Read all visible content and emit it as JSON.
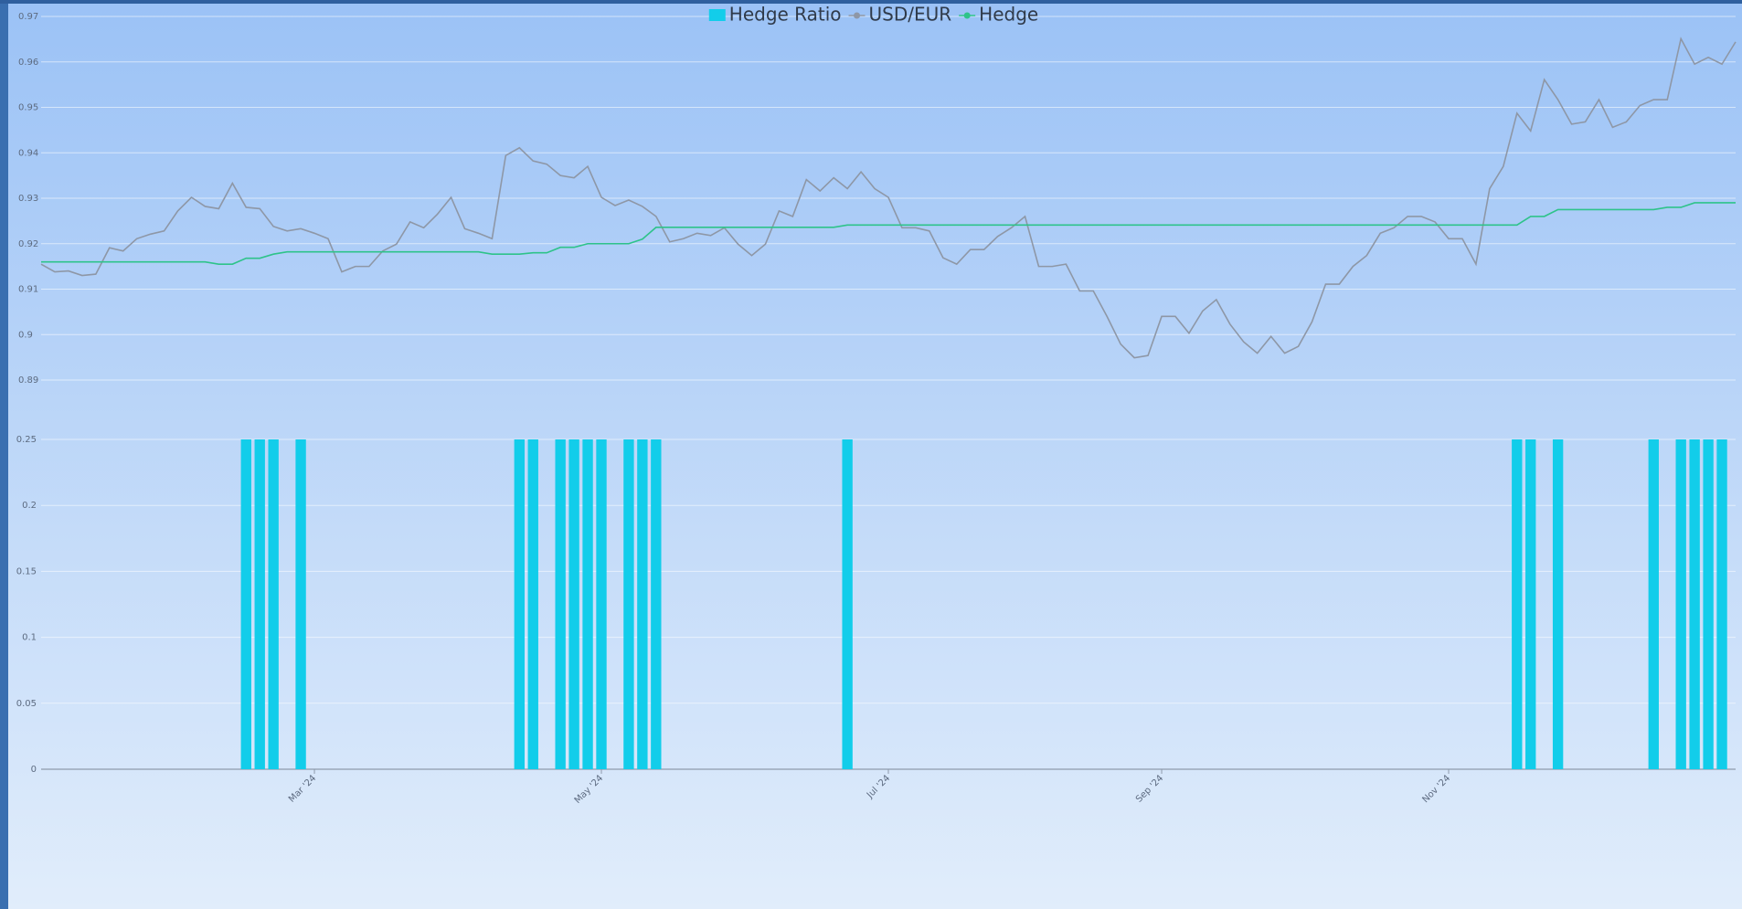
{
  "chart_data": {
    "type": "combo",
    "categories": [
      null,
      null,
      null,
      null,
      null,
      null,
      null,
      null,
      null,
      null,
      null,
      null,
      null,
      null,
      null,
      null,
      null,
      null,
      null,
      null,
      "Mar '24",
      null,
      null,
      null,
      null,
      null,
      null,
      null,
      null,
      null,
      null,
      null,
      null,
      null,
      null,
      null,
      null,
      null,
      null,
      null,
      null,
      "May '24",
      null,
      null,
      null,
      null,
      null,
      null,
      null,
      null,
      null,
      null,
      null,
      null,
      null,
      null,
      null,
      null,
      null,
      null,
      null,
      null,
      "Jul '24",
      null,
      null,
      null,
      null,
      null,
      null,
      null,
      null,
      null,
      null,
      null,
      null,
      null,
      null,
      null,
      null,
      null,
      null,
      null,
      "Sep '24",
      null,
      null,
      null,
      null,
      null,
      null,
      null,
      null,
      null,
      null,
      null,
      null,
      null,
      null,
      null,
      null,
      null,
      null,
      null,
      null,
      "Nov '24",
      null,
      null,
      null,
      null,
      null,
      null,
      null,
      null,
      null,
      null,
      null,
      null,
      null,
      null,
      null,
      null,
      null,
      null,
      null,
      null,
      null
    ],
    "series": [
      {
        "name": "Hedge Ratio",
        "type": "bar",
        "axis": "y2",
        "color": "#12cdea",
        "values": [
          0,
          0,
          0,
          0,
          0,
          0,
          0,
          0,
          0,
          0,
          0,
          0,
          0,
          0,
          0,
          0.25,
          0.25,
          0.25,
          0,
          0.25,
          0,
          0,
          0,
          0,
          0,
          0,
          0,
          0,
          0,
          0,
          0,
          0,
          0,
          0,
          0,
          0.25,
          0.25,
          0,
          0.25,
          0.25,
          0.25,
          0.25,
          0,
          0.25,
          0.25,
          0.25,
          0,
          0,
          0,
          0,
          0,
          0,
          0,
          0,
          0,
          0,
          0,
          0,
          0,
          0.25,
          0,
          0,
          0,
          0,
          0,
          0,
          0,
          0,
          0,
          0,
          0,
          0,
          0,
          0,
          0,
          0,
          0,
          0,
          0,
          0,
          0,
          0,
          0,
          0,
          0,
          0,
          0,
          0,
          0,
          0,
          0,
          0,
          0,
          0,
          0,
          0,
          0,
          0,
          0,
          0,
          0,
          0,
          0,
          0,
          0,
          0,
          0,
          0,
          0.25,
          0.25,
          0,
          0.25,
          0,
          0,
          0,
          0,
          0,
          0,
          0.25,
          0,
          0.25,
          0.25,
          0.25,
          0.25,
          0
        ]
      },
      {
        "name": "USD/EUR",
        "type": "line",
        "color": "#8e97a6",
        "values": [
          0.9155,
          0.9138,
          0.914,
          0.913,
          0.9133,
          0.9191,
          0.9184,
          0.9211,
          0.9221,
          0.9228,
          0.9272,
          0.9302,
          0.9282,
          0.9277,
          0.9333,
          0.928,
          0.9277,
          0.9238,
          0.9228,
          0.9233,
          0.9223,
          0.9211,
          0.9138,
          0.915,
          0.915,
          0.9184,
          0.9199,
          0.9248,
          0.9235,
          0.9265,
          0.9302,
          0.9233,
          0.9223,
          0.9211,
          0.9394,
          0.9411,
          0.9382,
          0.9375,
          0.935,
          0.9345,
          0.937,
          0.9302,
          0.9284,
          0.9296,
          0.9282,
          0.926,
          0.9204,
          0.9211,
          0.9223,
          0.9218,
          0.9235,
          0.9199,
          0.9174,
          0.9199,
          0.9272,
          0.926,
          0.9341,
          0.9316,
          0.9345,
          0.9321,
          0.9358,
          0.9321,
          0.9302,
          0.9235,
          0.9235,
          0.9228,
          0.9169,
          0.9155,
          0.9187,
          0.9187,
          0.9216,
          0.9235,
          0.926,
          0.915,
          0.915,
          0.9155,
          0.9096,
          0.9096,
          0.904,
          0.8979,
          0.8949,
          0.8954,
          0.904,
          0.904,
          0.9003,
          0.9052,
          0.9077,
          0.9023,
          0.8984,
          0.8959,
          0.8996,
          0.8959,
          0.8974,
          0.9028,
          0.9111,
          0.9111,
          0.915,
          0.9174,
          0.9223,
          0.9235,
          0.926,
          0.926,
          0.9248,
          0.9211,
          0.9211,
          0.9155,
          0.9321,
          0.937,
          0.9487,
          0.9448,
          0.9561,
          0.9517,
          0.9463,
          0.9468,
          0.9517,
          0.9456,
          0.9468,
          0.9504,
          0.9517,
          0.9517,
          0.9651,
          0.9595,
          0.961,
          0.9595,
          0.9644
        ]
      },
      {
        "name": "Hedge",
        "type": "line",
        "color": "#2ec38a",
        "values": [
          0.916,
          0.916,
          0.916,
          0.916,
          0.916,
          0.916,
          0.916,
          0.916,
          0.916,
          0.916,
          0.916,
          0.916,
          0.916,
          0.9155,
          0.9155,
          0.9168,
          0.9168,
          0.9177,
          0.9182,
          0.9182,
          0.9182,
          0.9182,
          0.9182,
          0.9182,
          0.9182,
          0.9182,
          0.9182,
          0.9182,
          0.9182,
          0.9182,
          0.9182,
          0.9182,
          0.9182,
          0.9177,
          0.9177,
          0.9177,
          0.918,
          0.918,
          0.9192,
          0.9192,
          0.92,
          0.92,
          0.92,
          0.92,
          0.921,
          0.9236,
          0.9236,
          0.9236,
          0.9236,
          0.9236,
          0.9236,
          0.9236,
          0.9236,
          0.9236,
          0.9236,
          0.9236,
          0.9236,
          0.9236,
          0.9236,
          0.9241,
          0.9241,
          0.9241,
          0.9241,
          0.9241,
          0.9241,
          0.9241,
          0.9241,
          0.9241,
          0.9241,
          0.9241,
          0.9241,
          0.9241,
          0.9241,
          0.9241,
          0.9241,
          0.9241,
          0.9241,
          0.9241,
          0.9241,
          0.9241,
          0.9241,
          0.9241,
          0.9241,
          0.9241,
          0.9241,
          0.9241,
          0.9241,
          0.9241,
          0.9241,
          0.9241,
          0.9241,
          0.9241,
          0.9241,
          0.9241,
          0.9241,
          0.9241,
          0.9241,
          0.9241,
          0.9241,
          0.9241,
          0.9241,
          0.9241,
          0.9241,
          0.9241,
          0.9241,
          0.9241,
          0.9241,
          0.9241,
          0.9241,
          0.926,
          0.926,
          0.9275,
          0.9275,
          0.9275,
          0.9275,
          0.9275,
          0.9275,
          0.9275,
          0.9275,
          0.928,
          0.928,
          0.929,
          0.929,
          0.929,
          0.929
        ]
      }
    ],
    "ylim": [
      0.89,
      0.97
    ],
    "yticks": [
      0.89,
      0.9,
      0.91,
      0.92,
      0.93,
      0.94,
      0.95,
      0.96,
      0.97
    ],
    "y2lim": [
      0,
      0.25
    ],
    "y2ticks": [
      0,
      0.05,
      0.1,
      0.15,
      0.2,
      0.25
    ],
    "grid": true
  }
}
